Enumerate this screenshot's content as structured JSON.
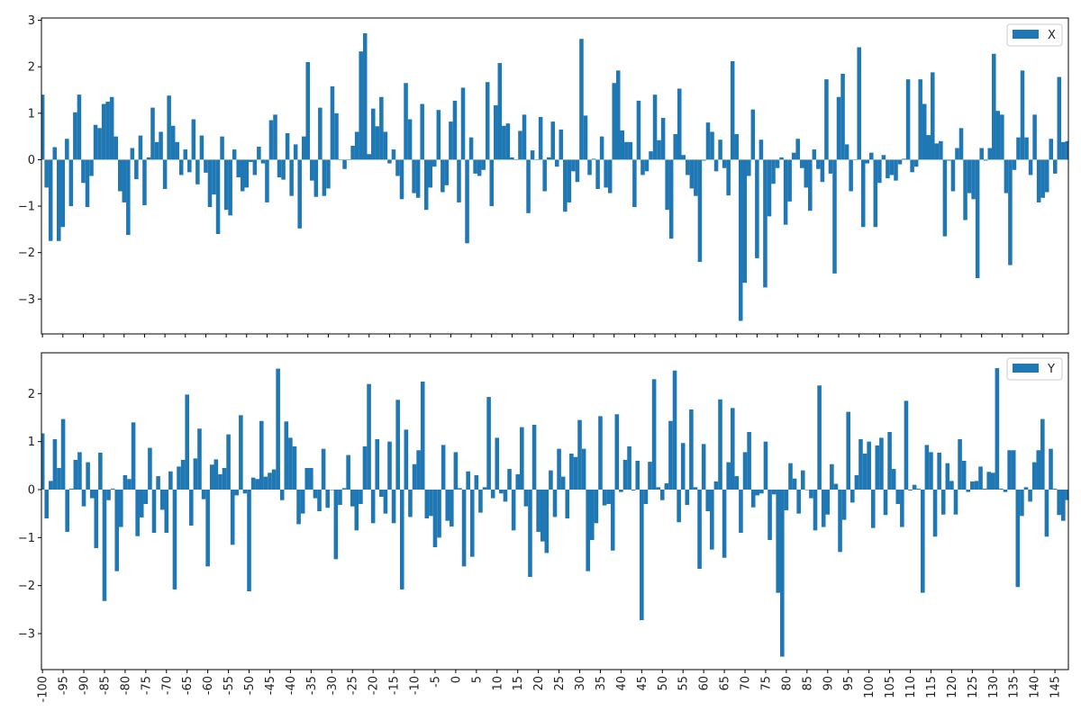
{
  "colors": {
    "bar": "#1f77b4",
    "axis": "#000000",
    "background": "#ffffff"
  },
  "chart_data": [
    {
      "type": "bar",
      "panel": "top",
      "legend": {
        "label": "X",
        "placement": "upper right"
      },
      "ylim": [
        -3.75,
        3.05
      ],
      "yticks": [
        3,
        2,
        1,
        0,
        -1,
        -2,
        -3
      ],
      "xticks_shown": false,
      "x_start": -100,
      "x_end": 149,
      "series": [
        {
          "name": "X",
          "values": [
            1.4,
            -0.6,
            -1.75,
            0.27,
            -1.75,
            -1.45,
            0.45,
            -1.0,
            1.02,
            1.4,
            -0.5,
            -1.02,
            -0.35,
            0.75,
            0.68,
            1.2,
            1.25,
            1.35,
            0.5,
            -0.68,
            -0.92,
            -1.62,
            0.25,
            -0.42,
            0.52,
            -0.98,
            0.05,
            1.12,
            0.38,
            0.6,
            -0.63,
            1.38,
            0.73,
            0.38,
            -0.33,
            0.22,
            -0.27,
            0.87,
            -0.53,
            0.52,
            -0.28,
            -1.02,
            -0.75,
            -1.6,
            0.5,
            -1.08,
            -1.2,
            0.22,
            -0.38,
            -0.68,
            -0.6,
            -0.05,
            -0.33,
            0.28,
            -0.08,
            -0.92,
            0.85,
            0.97,
            -0.38,
            -0.43,
            0.57,
            -0.78,
            0.33,
            -1.48,
            0.5,
            2.1,
            -0.45,
            -0.8,
            1.12,
            -0.78,
            -0.62,
            1.58,
            1.0,
            0.0,
            -0.2,
            0.0,
            0.3,
            0.6,
            2.33,
            2.72,
            0.12,
            1.1,
            0.72,
            1.35,
            0.6,
            -0.08,
            0.22,
            -0.35,
            -0.85,
            1.65,
            0.87,
            -0.72,
            -0.82,
            1.2,
            -1.08,
            -0.6,
            -0.15,
            1.07,
            -0.7,
            -0.55,
            0.82,
            1.27,
            -0.92,
            1.55,
            -1.8,
            0.48,
            -0.3,
            -0.35,
            -0.22,
            1.67,
            -1.0,
            1.17,
            2.08,
            0.73,
            0.78,
            0.05,
            0.0,
            0.62,
            0.97,
            -1.15,
            0.2,
            0.0,
            0.92,
            -0.68,
            0.05,
            0.82,
            -0.15,
            0.65,
            -1.12,
            -0.92,
            -0.25,
            -0.48,
            2.6,
            0.95,
            -0.33,
            0.02,
            -0.63,
            0.5,
            -0.6,
            -0.72,
            1.65,
            1.92,
            0.63,
            0.38,
            0.38,
            -1.02,
            1.27,
            -0.33,
            -0.25,
            0.18,
            1.4,
            0.42,
            0.9,
            -1.08,
            -1.7,
            0.55,
            1.53,
            0.1,
            -0.33,
            -0.62,
            -0.78,
            -2.2,
            -0.02,
            0.8,
            0.6,
            -0.25,
            0.43,
            -0.18,
            -0.77,
            2.12,
            0.55,
            -3.47,
            -2.65,
            -0.35,
            1.08,
            -2.12,
            0.43,
            -2.75,
            -1.22,
            -0.52,
            -0.18,
            0.05,
            -1.4,
            -0.9,
            0.15,
            0.45,
            -0.18,
            -0.6,
            -1.1,
            0.22,
            -0.2,
            -0.48,
            1.73,
            -0.3,
            -2.45,
            1.35,
            1.85,
            0.33,
            -0.68,
            0.0,
            2.42,
            -1.45,
            -0.08,
            0.15,
            -1.45,
            -0.5,
            0.1,
            -0.4,
            -0.33,
            -0.45,
            -0.1,
            0.02,
            1.73,
            -0.27,
            -0.15,
            1.73,
            1.2,
            0.53,
            1.88,
            0.35,
            0.4,
            -1.65,
            -0.02,
            -0.68,
            0.25,
            0.68,
            -1.3,
            -0.72,
            -0.85,
            -2.55,
            0.25,
            -0.02,
            0.25,
            2.28,
            1.05,
            0.97,
            -0.72,
            -2.27,
            -0.22,
            0.48,
            1.92,
            0.48,
            -0.33,
            0.97,
            -0.92,
            -0.82,
            -0.7,
            0.45,
            -0.3,
            1.78,
            0.38,
            0.4
          ]
        }
      ]
    },
    {
      "type": "bar",
      "panel": "bottom",
      "legend": {
        "label": "Y",
        "placement": "upper right"
      },
      "ylim": [
        -3.75,
        2.85
      ],
      "yticks": [
        2,
        1,
        0,
        -1,
        -2,
        -3
      ],
      "xticks": [
        -100,
        -95,
        -90,
        -85,
        -80,
        -75,
        -70,
        -65,
        -60,
        -55,
        -50,
        -45,
        -40,
        -35,
        -30,
        -25,
        -20,
        -15,
        -10,
        -5,
        0,
        5,
        10,
        15,
        20,
        25,
        30,
        35,
        40,
        45,
        50,
        55,
        60,
        65,
        70,
        75,
        80,
        85,
        90,
        95,
        100,
        105,
        110,
        115,
        120,
        125,
        130,
        135,
        140,
        145
      ],
      "xtick_labels": [
        "-100",
        "-95",
        "-90",
        "-85",
        "-80",
        "-75",
        "-70",
        "-65",
        "-60",
        "-55",
        "-50",
        "-45",
        "-40",
        "-35",
        "-30",
        "-25",
        "-20",
        "-15",
        "-10",
        "-5",
        "0",
        "5",
        "10",
        "15",
        "20",
        "25",
        "30",
        "35",
        "40",
        "45",
        "50",
        "55",
        "60",
        "65",
        "70",
        "75",
        "80",
        "85",
        "90",
        "95",
        "100",
        "105",
        "110",
        "115",
        "120",
        "125",
        "130",
        "135",
        "140",
        "145"
      ],
      "x_start": -100,
      "x_end": 149,
      "series": [
        {
          "name": "Y",
          "values": [
            1.17,
            -0.6,
            0.18,
            1.05,
            0.45,
            1.47,
            -0.88,
            0.02,
            0.62,
            0.78,
            -0.35,
            0.57,
            -0.18,
            -1.22,
            0.77,
            -2.32,
            -0.22,
            0.02,
            -1.7,
            -0.78,
            0.3,
            0.22,
            1.4,
            -0.97,
            -0.58,
            -0.3,
            0.87,
            -0.9,
            0.28,
            -0.42,
            -0.9,
            0.38,
            -2.08,
            0.48,
            0.62,
            1.98,
            -0.75,
            0.65,
            1.27,
            -0.2,
            -1.6,
            0.52,
            0.63,
            0.32,
            0.45,
            1.15,
            -1.15,
            -0.12,
            1.55,
            -0.08,
            -2.12,
            0.25,
            0.22,
            1.43,
            0.27,
            0.35,
            0.42,
            2.52,
            -0.22,
            1.42,
            1.08,
            0.9,
            -0.72,
            -0.5,
            0.45,
            0.45,
            -0.18,
            -0.45,
            0.85,
            -0.38,
            0.0,
            -1.45,
            -0.32,
            0.03,
            0.72,
            -0.35,
            -0.85,
            -0.3,
            0.9,
            2.2,
            -0.7,
            1.05,
            -0.15,
            -0.5,
            1.0,
            -0.7,
            1.87,
            -2.08,
            1.25,
            -0.57,
            0.53,
            0.82,
            2.25,
            -0.6,
            -0.55,
            -1.2,
            -1.0,
            0.93,
            -0.65,
            -0.77,
            0.78,
            0.03,
            -1.6,
            0.38,
            -1.4,
            0.3,
            -0.48,
            0.05,
            1.93,
            -0.18,
            1.08,
            -0.08,
            -0.25,
            0.43,
            -0.85,
            0.32,
            1.3,
            -0.35,
            -1.82,
            1.35,
            -0.88,
            -1.08,
            -1.32,
            0.4,
            -0.57,
            0.85,
            0.27,
            -0.6,
            0.75,
            0.68,
            1.45,
            0.85,
            -1.7,
            -1.05,
            -0.7,
            1.53,
            -0.33,
            -0.3,
            -1.27,
            1.57,
            -0.05,
            0.62,
            0.9,
            -0.02,
            0.6,
            -2.72,
            -0.3,
            0.58,
            2.3,
            0.05,
            -0.22,
            0.13,
            1.43,
            2.48,
            -0.68,
            0.97,
            -0.32,
            1.67,
            0.05,
            -1.65,
            0.95,
            -0.45,
            -1.25,
            0.17,
            1.88,
            -1.42,
            0.57,
            1.7,
            0.28,
            -0.9,
            0.78,
            1.2,
            -0.37,
            -0.12,
            -0.08,
            1.0,
            -1.05,
            -0.1,
            -2.15,
            -3.48,
            -0.43,
            0.55,
            0.23,
            -0.5,
            0.4,
            0.0,
            -0.18,
            -0.85,
            2.17,
            -0.78,
            -0.52,
            0.53,
            0.12,
            -1.3,
            -0.63,
            1.62,
            -0.27,
            0.3,
            1.05,
            0.75,
            1.0,
            -0.8,
            0.92,
            1.08,
            -0.53,
            1.2,
            0.43,
            -0.3,
            -0.78,
            1.85,
            -0.02,
            0.1,
            0.02,
            -2.15,
            0.93,
            0.78,
            -0.98,
            0.77,
            -0.52,
            0.55,
            0.18,
            -0.52,
            1.05,
            0.6,
            -0.05,
            0.17,
            0.18,
            0.48,
            0.02,
            0.37,
            0.35,
            2.53,
            0.02,
            -0.05,
            0.82,
            0.82,
            -2.03,
            -0.55,
            0.05,
            -0.25,
            0.57,
            0.82,
            1.47,
            -0.98,
            0.85,
            0.02,
            -0.53,
            -0.65,
            -0.22
          ]
        }
      ]
    }
  ]
}
